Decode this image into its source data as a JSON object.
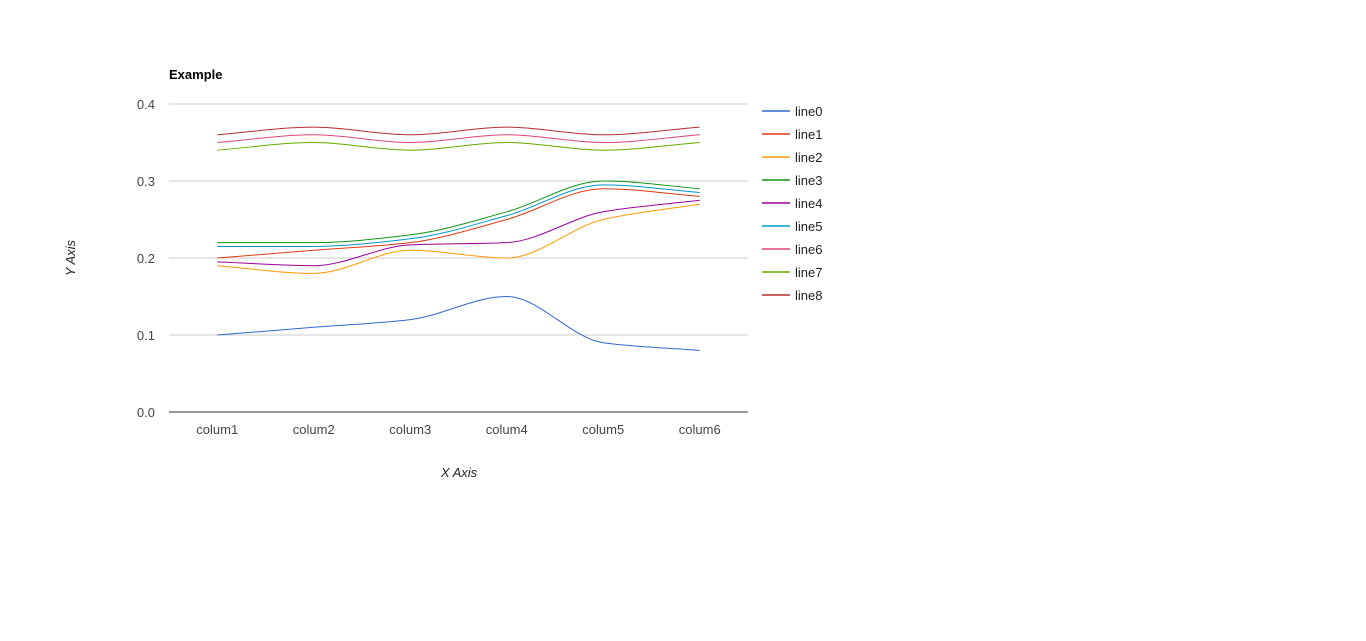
{
  "chart_data": {
    "type": "line",
    "title": "Example",
    "xlabel": "X Axis",
    "ylabel": "Y Axis",
    "categories": [
      "colum1",
      "colum2",
      "colum3",
      "colum4",
      "colum5",
      "colum6"
    ],
    "ylim": [
      0,
      0.4
    ],
    "yticks": [
      "0.0",
      "0.1",
      "0.2",
      "0.3",
      "0.4"
    ],
    "grid": true,
    "legend": "right",
    "curve": "smooth",
    "series": [
      {
        "name": "line0",
        "color": "#3366cc",
        "values": [
          0.1,
          0.11,
          0.12,
          0.15,
          0.09,
          0.08
        ]
      },
      {
        "name": "line1",
        "color": "#dc3912",
        "values": [
          0.2,
          0.21,
          0.22,
          0.25,
          0.29,
          0.28
        ]
      },
      {
        "name": "line2",
        "color": "#ff9900",
        "values": [
          0.19,
          0.18,
          0.21,
          0.2,
          0.25,
          0.27
        ]
      },
      {
        "name": "line3",
        "color": "#109618",
        "values": [
          0.22,
          0.22,
          0.23,
          0.26,
          0.3,
          0.29
        ]
      },
      {
        "name": "line4",
        "color": "#990099",
        "values": [
          0.195,
          0.19,
          0.217,
          0.22,
          0.26,
          0.275
        ]
      },
      {
        "name": "line5",
        "color": "#0099c6",
        "values": [
          0.215,
          0.215,
          0.225,
          0.255,
          0.295,
          0.285
        ]
      },
      {
        "name": "line6",
        "color": "#dd4477",
        "values": [
          0.35,
          0.36,
          0.35,
          0.36,
          0.35,
          0.36
        ]
      },
      {
        "name": "line7",
        "color": "#66aa00",
        "values": [
          0.34,
          0.35,
          0.34,
          0.35,
          0.34,
          0.35
        ]
      },
      {
        "name": "line8",
        "color": "#b82e2e",
        "values": [
          0.36,
          0.37,
          0.36,
          0.37,
          0.36,
          0.37
        ]
      }
    ]
  }
}
